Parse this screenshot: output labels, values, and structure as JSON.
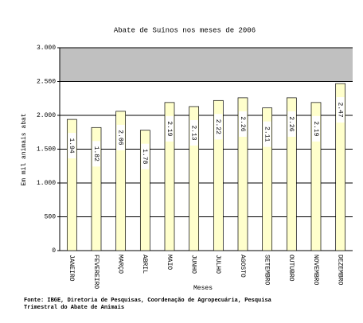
{
  "chart_data": {
    "type": "bar",
    "title": "Abate de Suinos nos meses de 2006",
    "y_label": "Em mil animais abat",
    "x_label": "Meses",
    "footnote": [
      "Fonte: IBGE, Diretoria de Pesquisas, Coordenação de Agropecuária, Pesquisa",
      "Trimestral do Abate de Animais"
    ],
    "categories": [
      "JANEIRO",
      "FEVEREIRO",
      "MARÇO",
      "ABRIL",
      "MAIO",
      "JUNHO",
      "JULHO",
      "AGOSTO",
      "SETEMBRO",
      "OUTUBRO",
      "NOVEMBRO",
      "DEZEMBRO"
    ],
    "values": [
      1940,
      1820,
      2060,
      1780,
      2190,
      2130,
      2220,
      2260,
      2110,
      2260,
      2190,
      2470
    ],
    "value_labels": [
      "1.94",
      "1.82",
      "2.06",
      "1.78",
      "2.19",
      "2.13",
      "2.22",
      "2.26",
      "2.11",
      "2.26",
      "2.19",
      "2.47"
    ],
    "color": "#ffffcc",
    "ylim": [
      0,
      3000
    ],
    "yticks": [
      0,
      500,
      {
        "value": 1000,
        "label": "1.000"
      },
      {
        "value": 1500,
        "label": "1.500"
      },
      {
        "value": 2000,
        "label": "2.000"
      },
      {
        "value": 2500,
        "label": "2.500"
      },
      {
        "value": 3000,
        "label": "3.000"
      }
    ],
    "grid": true
  }
}
